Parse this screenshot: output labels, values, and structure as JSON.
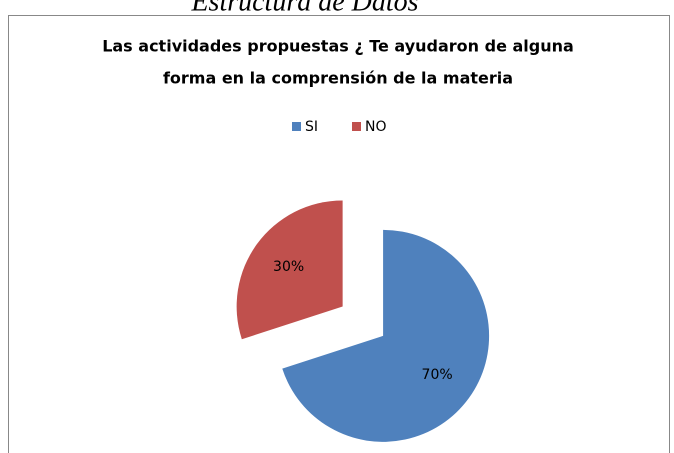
{
  "header": {
    "text": "Estructura de Datos"
  },
  "chart_data": {
    "type": "pie",
    "title": [
      "Las actividades propuestas ¿ Te ayudaron de alguna",
      "forma en la comprensión de la materia"
    ],
    "categories": [
      "SI",
      "NO"
    ],
    "values": [
      70,
      30
    ],
    "value_labels": [
      "70%",
      "30%"
    ],
    "colors": [
      "#4f81bd",
      "#c0504d"
    ],
    "legend": "top"
  }
}
